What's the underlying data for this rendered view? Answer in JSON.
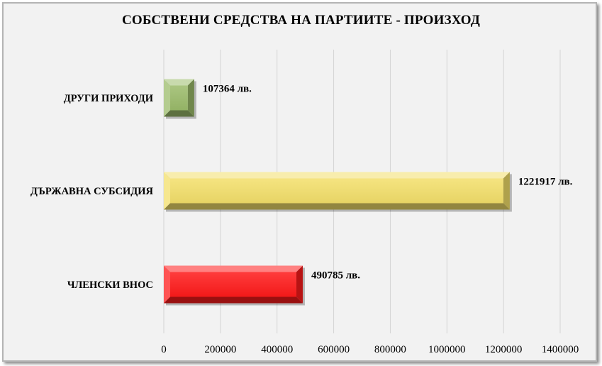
{
  "chart_data": {
    "type": "bar",
    "orientation": "horizontal",
    "title": "СОБСТВЕНИ СРЕДСТВА НА ПАРТИИТЕ - ПРОИЗХОД",
    "categories": [
      "ДРУГИ ПРИХОДИ",
      "ДЪРЖАВНА СУБСИДИЯ",
      "ЧЛЕНСКИ ВНОС"
    ],
    "values": [
      107364,
      1221917,
      490785
    ],
    "data_labels": [
      "107364 лв.",
      "1221917 лв.",
      "490785 лв."
    ],
    "colors": [
      "#9bbb6a",
      "#f3df6a",
      "#ff1a1a"
    ],
    "xlim": [
      0,
      1400000
    ],
    "xticks": [
      "0",
      "200000",
      "400000",
      "600000",
      "800000",
      "1000000",
      "1200000",
      "1400000"
    ],
    "grid": true,
    "legend": "none"
  }
}
